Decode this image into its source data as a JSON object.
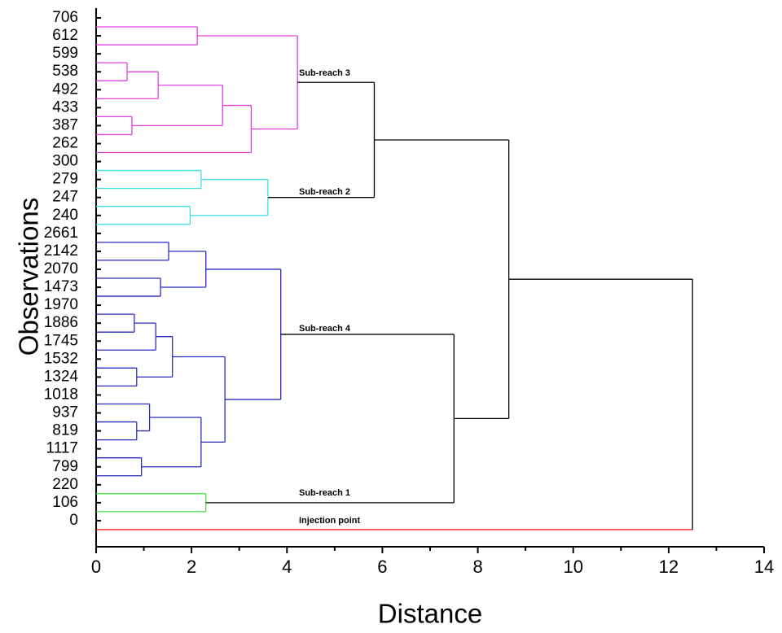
{
  "chart_data": {
    "type": "dendrogram",
    "xlabel": "Distance",
    "ylabel": "Observations",
    "xlim": [
      0,
      14
    ],
    "xticks": [
      0,
      2,
      4,
      6,
      8,
      10,
      12,
      14
    ],
    "leaves": [
      {
        "label": "706",
        "color": "#e040e0"
      },
      {
        "label": "612",
        "color": "#e040e0"
      },
      {
        "label": "599",
        "color": "#e040e0"
      },
      {
        "label": "538",
        "color": "#e040e0"
      },
      {
        "label": "492",
        "color": "#e040e0"
      },
      {
        "label": "433",
        "color": "#e040e0"
      },
      {
        "label": "387",
        "color": "#e040e0"
      },
      {
        "label": "262",
        "color": "#e040e0"
      },
      {
        "label": "300",
        "color": "#40e0e0"
      },
      {
        "label": "279",
        "color": "#40e0e0"
      },
      {
        "label": "247",
        "color": "#40e0e0"
      },
      {
        "label": "240",
        "color": "#40e0e0"
      },
      {
        "label": "2661",
        "color": "#2a2ac0"
      },
      {
        "label": "2142",
        "color": "#2a2ac0"
      },
      {
        "label": "2070",
        "color": "#2a2ac0"
      },
      {
        "label": "1473",
        "color": "#2a2ac0"
      },
      {
        "label": "1970",
        "color": "#2a2ac0"
      },
      {
        "label": "1886",
        "color": "#2a2ac0"
      },
      {
        "label": "1745",
        "color": "#2a2ac0"
      },
      {
        "label": "1532",
        "color": "#2a2ac0"
      },
      {
        "label": "1324",
        "color": "#2a2ac0"
      },
      {
        "label": "1018",
        "color": "#2a2ac0"
      },
      {
        "label": "937",
        "color": "#2a2ac0"
      },
      {
        "label": "819",
        "color": "#2a2ac0"
      },
      {
        "label": "1117",
        "color": "#2a2ac0"
      },
      {
        "label": "799",
        "color": "#2a2ac0"
      },
      {
        "label": "220",
        "color": "#40e040"
      },
      {
        "label": "106",
        "color": "#40e040"
      },
      {
        "label": "0",
        "color": "#ff2020"
      }
    ],
    "merges": [
      {
        "left": 0,
        "right": 1,
        "height": 2.12,
        "color": "#e040e0"
      },
      {
        "left": 2,
        "right": 3,
        "height": 0.65,
        "color": "#e040e0"
      },
      {
        "left": 30,
        "right": 4,
        "height": 1.3,
        "color": "#e040e0"
      },
      {
        "left": 5,
        "right": 6,
        "height": 0.75,
        "color": "#e040e0"
      },
      {
        "left": 31,
        "right": 32,
        "height": 2.65,
        "color": "#e040e0"
      },
      {
        "left": 33,
        "right": 7,
        "height": 3.25,
        "color": "#e040e0"
      },
      {
        "left": 29,
        "right": 34,
        "height": 4.22,
        "color": "#e040e0"
      },
      {
        "left": 8,
        "right": 9,
        "height": 2.2,
        "color": "#40e0e0"
      },
      {
        "left": 10,
        "right": 11,
        "height": 1.97,
        "color": "#40e0e0"
      },
      {
        "left": 36,
        "right": 37,
        "height": 3.6,
        "color": "#40e0e0"
      },
      {
        "left": 35,
        "right": 38,
        "height": 5.83,
        "color": "#000000"
      },
      {
        "left": 12,
        "right": 13,
        "height": 1.52,
        "color": "#2a2ac0"
      },
      {
        "left": 14,
        "right": 15,
        "height": 1.35,
        "color": "#2a2ac0"
      },
      {
        "left": 40,
        "right": 41,
        "height": 2.3,
        "color": "#2a2ac0"
      },
      {
        "left": 16,
        "right": 17,
        "height": 0.8,
        "color": "#2a2ac0"
      },
      {
        "left": 43,
        "right": 18,
        "height": 1.25,
        "color": "#2a2ac0"
      },
      {
        "left": 19,
        "right": 20,
        "height": 0.85,
        "color": "#2a2ac0"
      },
      {
        "left": 44,
        "right": 45,
        "height": 1.6,
        "color": "#2a2ac0"
      },
      {
        "left": 22,
        "right": 23,
        "height": 0.85,
        "color": "#2a2ac0"
      },
      {
        "left": 21,
        "right": 47,
        "height": 1.12,
        "color": "#2a2ac0"
      },
      {
        "left": 24,
        "right": 25,
        "height": 0.95,
        "color": "#2a2ac0"
      },
      {
        "left": 48,
        "right": 49,
        "height": 2.2,
        "color": "#2a2ac0"
      },
      {
        "left": 46,
        "right": 50,
        "height": 2.7,
        "color": "#2a2ac0"
      },
      {
        "left": 42,
        "right": 51,
        "height": 3.87,
        "color": "#2a2ac0"
      },
      {
        "left": 26,
        "right": 27,
        "height": 2.3,
        "color": "#40e040"
      },
      {
        "left": 52,
        "right": 53,
        "height": 7.5,
        "color": "#000000"
      },
      {
        "left": 39,
        "right": 54,
        "height": 8.65,
        "color": "#000000"
      },
      {
        "left": 55,
        "right": 28,
        "height": 12.5,
        "color": "#000000"
      }
    ],
    "annotations": [
      "Sub-reach 3",
      "Sub-reach 2",
      "Sub-reach 4",
      "Sub-reach 1",
      "Injection point"
    ]
  }
}
